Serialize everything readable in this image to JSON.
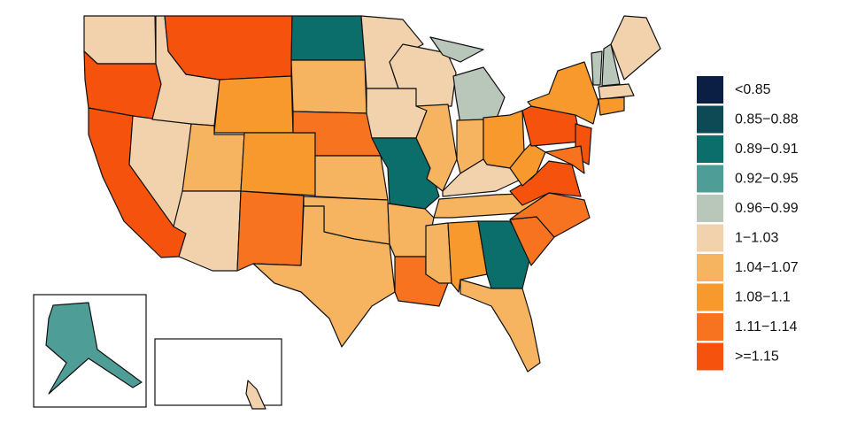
{
  "legend": {
    "items": [
      {
        "label": "<0.85",
        "color": "#0b1f45"
      },
      {
        "label": "0.85−0.88",
        "color": "#0d4a55"
      },
      {
        "label": "0.89−0.91",
        "color": "#0c6e6b"
      },
      {
        "label": "0.92−0.95",
        "color": "#4e9d96"
      },
      {
        "label": "0.96−0.99",
        "color": "#b9c6ba"
      },
      {
        "label": "1−1.03",
        "color": "#f1d2ad"
      },
      {
        "label": "1.04−1.07",
        "color": "#f6b461"
      },
      {
        "label": "1.08−1.1",
        "color": "#f8992d"
      },
      {
        "label": "1.11−1.14",
        "color": "#f7731f"
      },
      {
        "label": ">=1.15",
        "color": "#f5520e"
      }
    ]
  }
}
